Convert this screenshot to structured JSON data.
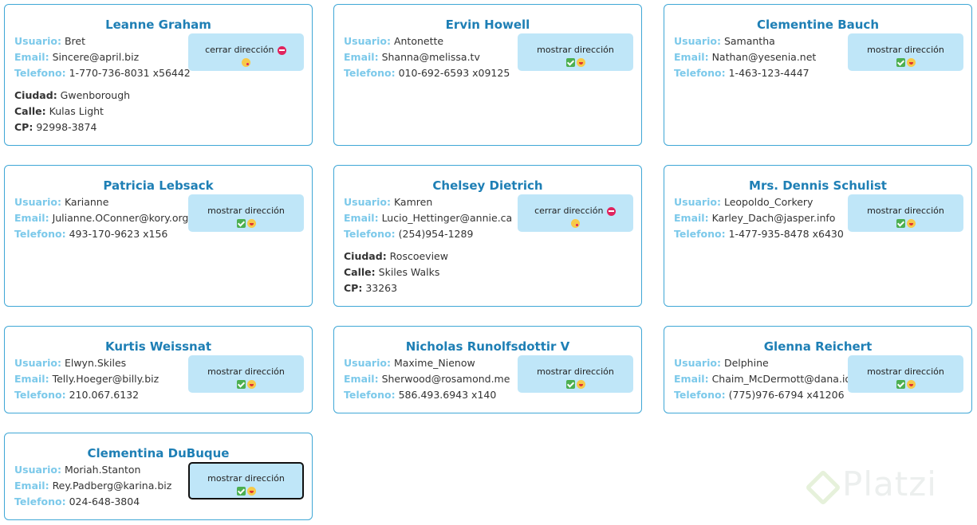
{
  "labels": {
    "user": "Usuario:",
    "email": "Email:",
    "phone": "Telefono:",
    "city": "Ciudad:",
    "street": "Calle:",
    "zip": "CP:"
  },
  "buttons": {
    "show": "mostrar dirección",
    "hide": "cerrar dirección"
  },
  "cards": [
    {
      "name": "Leanne Graham",
      "username": "Bret",
      "email": "Sincere@april.biz",
      "phone": "1-770-736-8031 x56442",
      "expanded": true,
      "city": "Gwenborough",
      "street": "Kulas Light",
      "zip": "92998-3874"
    },
    {
      "name": "Ervin Howell",
      "username": "Antonette",
      "email": "Shanna@melissa.tv",
      "phone": "010-692-6593 x09125",
      "expanded": false
    },
    {
      "name": "Clementine Bauch",
      "username": "Samantha",
      "email": "Nathan@yesenia.net",
      "phone": "1-463-123-4447",
      "expanded": false
    },
    {
      "name": "Patricia Lebsack",
      "username": "Karianne",
      "email": "Julianne.OConner@kory.org",
      "phone": "493-170-9623 x156",
      "expanded": false
    },
    {
      "name": "Chelsey Dietrich",
      "username": "Kamren",
      "email": "Lucio_Hettinger@annie.ca",
      "phone": "(254)954-1289",
      "expanded": true,
      "city": "Roscoeview",
      "street": "Skiles Walks",
      "zip": "33263"
    },
    {
      "name": "Mrs. Dennis Schulist",
      "username": "Leopoldo_Corkery",
      "email": "Karley_Dach@jasper.info",
      "phone": "1-477-935-8478 x6430",
      "expanded": false
    },
    {
      "name": "Kurtis Weissnat",
      "username": "Elwyn.Skiles",
      "email": "Telly.Hoeger@billy.biz",
      "phone": "210.067.6132",
      "expanded": false
    },
    {
      "name": "Nicholas Runolfsdottir V",
      "username": "Maxime_Nienow",
      "email": "Sherwood@rosamond.me",
      "phone": "586.493.6943 x140",
      "expanded": false
    },
    {
      "name": "Glenna Reichert",
      "username": "Delphine",
      "email": "Chaim_McDermott@dana.io",
      "phone": "(775)976-6794 x41206",
      "expanded": false
    },
    {
      "name": "Clementina DuBuque",
      "username": "Moriah.Stanton",
      "email": "Rey.Padberg@karina.biz",
      "phone": "024-648-3804",
      "expanded": false,
      "focused": true
    }
  ],
  "watermark": {
    "text": "Platzi"
  },
  "colors": {
    "accent": "#1e7fb5",
    "label": "#7cc9ea",
    "border": "#3fa7d6",
    "button": "#bfe6f8"
  }
}
